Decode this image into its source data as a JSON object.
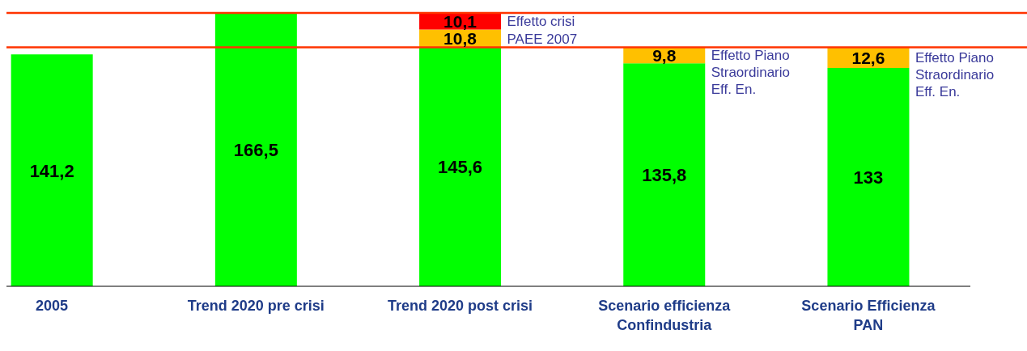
{
  "chart_data": {
    "type": "bar",
    "stacked": true,
    "categories": [
      "2005",
      "Trend 2020 pre crisi",
      "Trend 2020 post crisi",
      "Scenario efficienza\nConfindustria",
      "Scenario Efficienza\nPAN"
    ],
    "series": [
      {
        "color": "#00ff00",
        "values": [
          141.2,
          166.5,
          145.6,
          135.8,
          133
        ],
        "value_labels": [
          "141,2",
          "166,5",
          "145,6",
          "135,8",
          "133"
        ]
      },
      {
        "color": "#ffc000",
        "values": [
          null,
          null,
          10.8,
          9.8,
          12.6
        ],
        "value_labels": [
          null,
          null,
          "10,8",
          "9,8",
          "12,6"
        ]
      },
      {
        "color": "#ff0000",
        "values": [
          null,
          null,
          10.1,
          null,
          null
        ],
        "value_labels": [
          null,
          null,
          "10,1",
          null,
          null
        ]
      }
    ],
    "ref_lines": [
      {
        "axis": "y",
        "value": 166.5,
        "color": "#ff3300"
      },
      {
        "axis": "y",
        "value": 145.6,
        "color": "#ff3300"
      }
    ],
    "annotations": [
      "Effetto crisi",
      "PAEE 2007",
      "Effetto Piano\nStraordinario\nEff. En.",
      "Effetto Piano\nStraordinario\nEff. En."
    ],
    "legend": false,
    "grid": false
  }
}
